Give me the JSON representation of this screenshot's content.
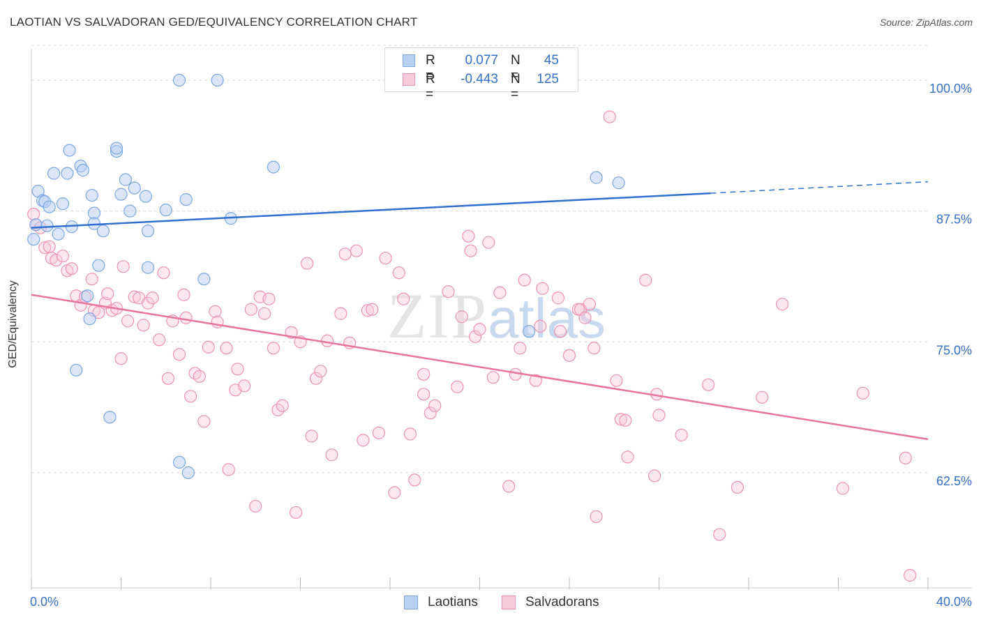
{
  "title": "LAOTIAN VS SALVADORAN GED/EQUIVALENCY CORRELATION CHART",
  "source": "Source: ZipAtlas.com",
  "watermark": {
    "zip": "ZIP",
    "atlas": "atlas"
  },
  "legend": {
    "rows": [
      {
        "r_label": "R =",
        "r_value": "0.077",
        "n_label": "N =",
        "n_value": "45"
      },
      {
        "r_label": "R =",
        "r_value": "-0.443",
        "n_label": "N =",
        "n_value": "125"
      }
    ]
  },
  "bottom_legend": [
    "Laotians",
    "Salvadorans"
  ],
  "colors": {
    "laotian_fill": "#b8d0f3",
    "laotian_stroke": "#7aa6e4",
    "laotian_line": "#2f6fcf",
    "salvadoran_fill": "#f9cbd9",
    "salvadoran_stroke": "#ec92b0",
    "salvadoran_line": "#e8739d",
    "axis_label": "#3370c8",
    "grid": "#d8d8d8"
  },
  "chart_data": {
    "type": "scatter",
    "title": "LAOTIAN VS SALVADORAN GED/EQUIVALENCY CORRELATION CHART",
    "xlabel": "",
    "ylabel": "GED/Equivalency",
    "xlim": [
      0,
      40
    ],
    "ylim": [
      51.5,
      103
    ],
    "x_tick_labels": [
      "0.0%",
      "40.0%"
    ],
    "y_ticks": [
      62.5,
      75.0,
      87.5,
      100.0
    ],
    "y_tick_labels": [
      "62.5%",
      "75.0%",
      "87.5%",
      "100.0%"
    ],
    "grid": "horizontal dashed",
    "legend_position": "top-center",
    "series": [
      {
        "name": "Laotians",
        "r": 0.077,
        "n": 45,
        "trend": {
          "x0": 0,
          "y0": 85.9,
          "x1": 30.3,
          "y1": 89.2,
          "dashed_to_x": 40,
          "dashed_to_y": 90.3
        },
        "points": [
          [
            0.2,
            86.2
          ],
          [
            0.3,
            89.4
          ],
          [
            0.5,
            88.5
          ],
          [
            0.6,
            88.4
          ],
          [
            0.7,
            86.1
          ],
          [
            0.8,
            87.9
          ],
          [
            1.0,
            91.1
          ],
          [
            1.2,
            85.3
          ],
          [
            1.4,
            88.2
          ],
          [
            1.6,
            91.1
          ],
          [
            1.7,
            93.3
          ],
          [
            1.8,
            86.0
          ],
          [
            2.0,
            72.3
          ],
          [
            2.2,
            91.8
          ],
          [
            2.3,
            91.4
          ],
          [
            2.5,
            79.4
          ],
          [
            2.6,
            77.2
          ],
          [
            2.7,
            89.0
          ],
          [
            2.8,
            87.3
          ],
          [
            2.8,
            86.3
          ],
          [
            3.0,
            82.3
          ],
          [
            3.2,
            85.6
          ],
          [
            3.5,
            67.8
          ],
          [
            3.8,
            93.2
          ],
          [
            3.8,
            93.5
          ],
          [
            4.0,
            89.1
          ],
          [
            4.2,
            90.5
          ],
          [
            4.4,
            87.5
          ],
          [
            4.6,
            89.7
          ],
          [
            5.1,
            88.9
          ],
          [
            5.2,
            85.6
          ],
          [
            5.2,
            82.1
          ],
          [
            6.0,
            87.6
          ],
          [
            6.6,
            100.0
          ],
          [
            6.6,
            63.5
          ],
          [
            6.9,
            88.6
          ],
          [
            7.0,
            62.5
          ],
          [
            7.7,
            81.0
          ],
          [
            8.3,
            100.0
          ],
          [
            8.9,
            86.8
          ],
          [
            10.8,
            91.7
          ],
          [
            22.2,
            76.0
          ],
          [
            25.2,
            90.7
          ],
          [
            26.2,
            90.2
          ],
          [
            0.1,
            84.8
          ]
        ]
      },
      {
        "name": "Salvadorans",
        "r": -0.443,
        "n": 125,
        "trend": {
          "x0": 0,
          "y0": 79.5,
          "x1": 40,
          "y1": 65.7
        },
        "points": [
          [
            0.1,
            87.2
          ],
          [
            0.2,
            86.2
          ],
          [
            0.4,
            85.9
          ],
          [
            0.6,
            84.0
          ],
          [
            0.8,
            84.1
          ],
          [
            0.9,
            83.0
          ],
          [
            1.1,
            82.8
          ],
          [
            1.4,
            83.2
          ],
          [
            1.6,
            81.8
          ],
          [
            1.8,
            82.0
          ],
          [
            2.0,
            79.4
          ],
          [
            2.2,
            78.5
          ],
          [
            2.4,
            79.3
          ],
          [
            2.7,
            81.0
          ],
          [
            2.8,
            78.0
          ],
          [
            3.0,
            77.8
          ],
          [
            3.3,
            78.7
          ],
          [
            3.4,
            79.6
          ],
          [
            3.6,
            78.0
          ],
          [
            3.8,
            78.2
          ],
          [
            4.0,
            73.4
          ],
          [
            4.1,
            82.2
          ],
          [
            4.3,
            77.0
          ],
          [
            4.6,
            79.3
          ],
          [
            4.8,
            79.2
          ],
          [
            5.0,
            76.6
          ],
          [
            5.2,
            78.7
          ],
          [
            5.4,
            79.2
          ],
          [
            5.7,
            75.2
          ],
          [
            5.9,
            81.6
          ],
          [
            6.1,
            71.5
          ],
          [
            6.3,
            77.0
          ],
          [
            6.6,
            73.8
          ],
          [
            6.8,
            79.5
          ],
          [
            6.9,
            77.3
          ],
          [
            7.1,
            69.8
          ],
          [
            7.3,
            72.0
          ],
          [
            7.5,
            71.7
          ],
          [
            7.7,
            67.4
          ],
          [
            7.9,
            74.5
          ],
          [
            8.2,
            77.9
          ],
          [
            8.3,
            76.9
          ],
          [
            8.7,
            74.4
          ],
          [
            8.8,
            62.8
          ],
          [
            9.1,
            70.4
          ],
          [
            9.2,
            72.4
          ],
          [
            9.5,
            70.8
          ],
          [
            9.8,
            78.1
          ],
          [
            10.0,
            59.3
          ],
          [
            10.2,
            79.3
          ],
          [
            10.4,
            77.7
          ],
          [
            10.6,
            79.1
          ],
          [
            10.8,
            74.4
          ],
          [
            11.0,
            68.5
          ],
          [
            11.2,
            68.9
          ],
          [
            11.6,
            75.9
          ],
          [
            11.8,
            58.7
          ],
          [
            12.0,
            75.0
          ],
          [
            12.3,
            82.5
          ],
          [
            12.5,
            66.0
          ],
          [
            12.7,
            71.5
          ],
          [
            12.9,
            72.2
          ],
          [
            13.2,
            75.1
          ],
          [
            13.4,
            64.2
          ],
          [
            13.8,
            77.7
          ],
          [
            14.0,
            83.4
          ],
          [
            14.2,
            74.9
          ],
          [
            14.5,
            83.7
          ],
          [
            14.8,
            65.6
          ],
          [
            15.0,
            78.0
          ],
          [
            15.2,
            78.1
          ],
          [
            15.5,
            66.3
          ],
          [
            15.8,
            83.0
          ],
          [
            16.2,
            60.6
          ],
          [
            16.4,
            81.6
          ],
          [
            16.6,
            79.1
          ],
          [
            16.9,
            66.2
          ],
          [
            17.1,
            61.8
          ],
          [
            17.5,
            70.0
          ],
          [
            17.5,
            71.9
          ],
          [
            17.8,
            68.2
          ],
          [
            18.0,
            68.9
          ],
          [
            18.6,
            79.8
          ],
          [
            19.0,
            70.7
          ],
          [
            19.2,
            77.4
          ],
          [
            19.5,
            85.1
          ],
          [
            19.6,
            83.7
          ],
          [
            19.8,
            75.5
          ],
          [
            20.0,
            76.2
          ],
          [
            20.4,
            84.5
          ],
          [
            20.6,
            71.6
          ],
          [
            20.9,
            79.7
          ],
          [
            21.3,
            61.2
          ],
          [
            21.6,
            71.9
          ],
          [
            21.8,
            74.4
          ],
          [
            22.0,
            80.9
          ],
          [
            22.5,
            71.3
          ],
          [
            22.7,
            76.5
          ],
          [
            22.8,
            80.1
          ],
          [
            23.5,
            79.2
          ],
          [
            23.6,
            76.0
          ],
          [
            24.0,
            73.7
          ],
          [
            24.4,
            78.1
          ],
          [
            24.5,
            78.1
          ],
          [
            24.7,
            77.3
          ],
          [
            25.1,
            74.4
          ],
          [
            24.9,
            78.6
          ],
          [
            25.2,
            58.3
          ],
          [
            25.8,
            96.5
          ],
          [
            26.1,
            71.3
          ],
          [
            26.3,
            67.6
          ],
          [
            26.5,
            67.5
          ],
          [
            26.6,
            64.0
          ],
          [
            27.4,
            80.9
          ],
          [
            27.8,
            62.2
          ],
          [
            27.9,
            70.0
          ],
          [
            28.0,
            68.0
          ],
          [
            29.0,
            66.1
          ],
          [
            30.2,
            70.9
          ],
          [
            30.7,
            56.6
          ],
          [
            31.5,
            61.1
          ],
          [
            32.6,
            69.7
          ],
          [
            33.5,
            78.6
          ],
          [
            36.2,
            61.0
          ],
          [
            37.1,
            70.1
          ],
          [
            39.0,
            63.9
          ],
          [
            39.2,
            52.7
          ]
        ]
      }
    ]
  }
}
